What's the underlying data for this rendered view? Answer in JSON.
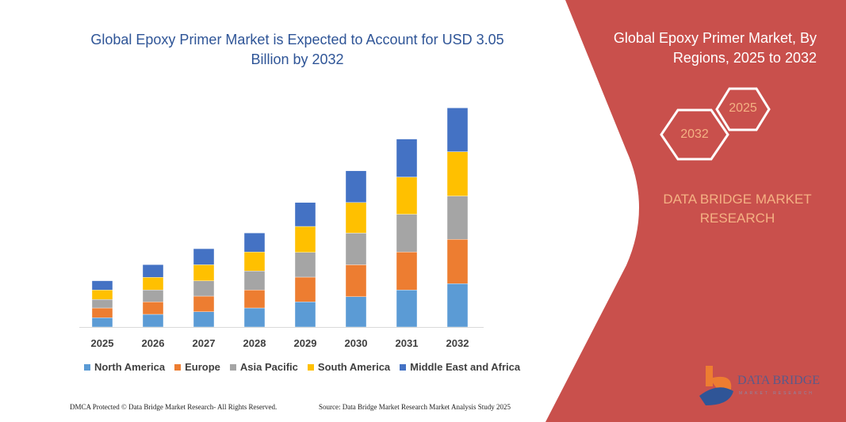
{
  "chart_data": {
    "type": "bar",
    "stacked": true,
    "title": "Global Epoxy Primer Market is Expected to Account for USD 3.05 Billion by 2032",
    "categories": [
      "2025",
      "2026",
      "2027",
      "2028",
      "2029",
      "2030",
      "2031",
      "2032"
    ],
    "series": [
      {
        "name": "North America",
        "color": "#5b9bd5",
        "values": [
          11.7,
          16,
          19.3,
          24,
          31.7,
          38.3,
          46.7,
          54.7
        ]
      },
      {
        "name": "Europe",
        "color": "#ed7d31",
        "values": [
          12.3,
          15.7,
          19.7,
          22.7,
          31.3,
          40.3,
          48,
          56
        ]
      },
      {
        "name": "Asia Pacific",
        "color": "#a5a5a5",
        "values": [
          10.7,
          15,
          19.3,
          24,
          31.3,
          40,
          47.7,
          54.7
        ]
      },
      {
        "name": "South America",
        "color": "#ffc000",
        "values": [
          12,
          16,
          20.3,
          24,
          32.7,
          38.7,
          47,
          56
        ]
      },
      {
        "name": "Middle East and Africa",
        "color": "#4472c4",
        "values": [
          11.7,
          16,
          20.3,
          24,
          30.3,
          40,
          48,
          55.3
        ]
      }
    ],
    "xlabel": "",
    "ylabel": "",
    "y_axis_shown": false,
    "grid": false,
    "legend_position": "bottom"
  },
  "panel": {
    "title": "Global Epoxy Primer Market, By Regions, 2025 to 2032",
    "hex_start": "2025",
    "hex_end": "2032",
    "brand": "DATA BRIDGE MARKET RESEARCH",
    "color": "#c9504c",
    "accent": "#f4b183"
  },
  "logo": {
    "name": "DATA BRIDGE",
    "tagline": "MARKET RESEARCH"
  },
  "footer": {
    "left": "DMCA Protected © Data Bridge Market Research-  All Rights Reserved.",
    "right": "Source: Data Bridge Market Research  Market Analysis Study 2025"
  }
}
